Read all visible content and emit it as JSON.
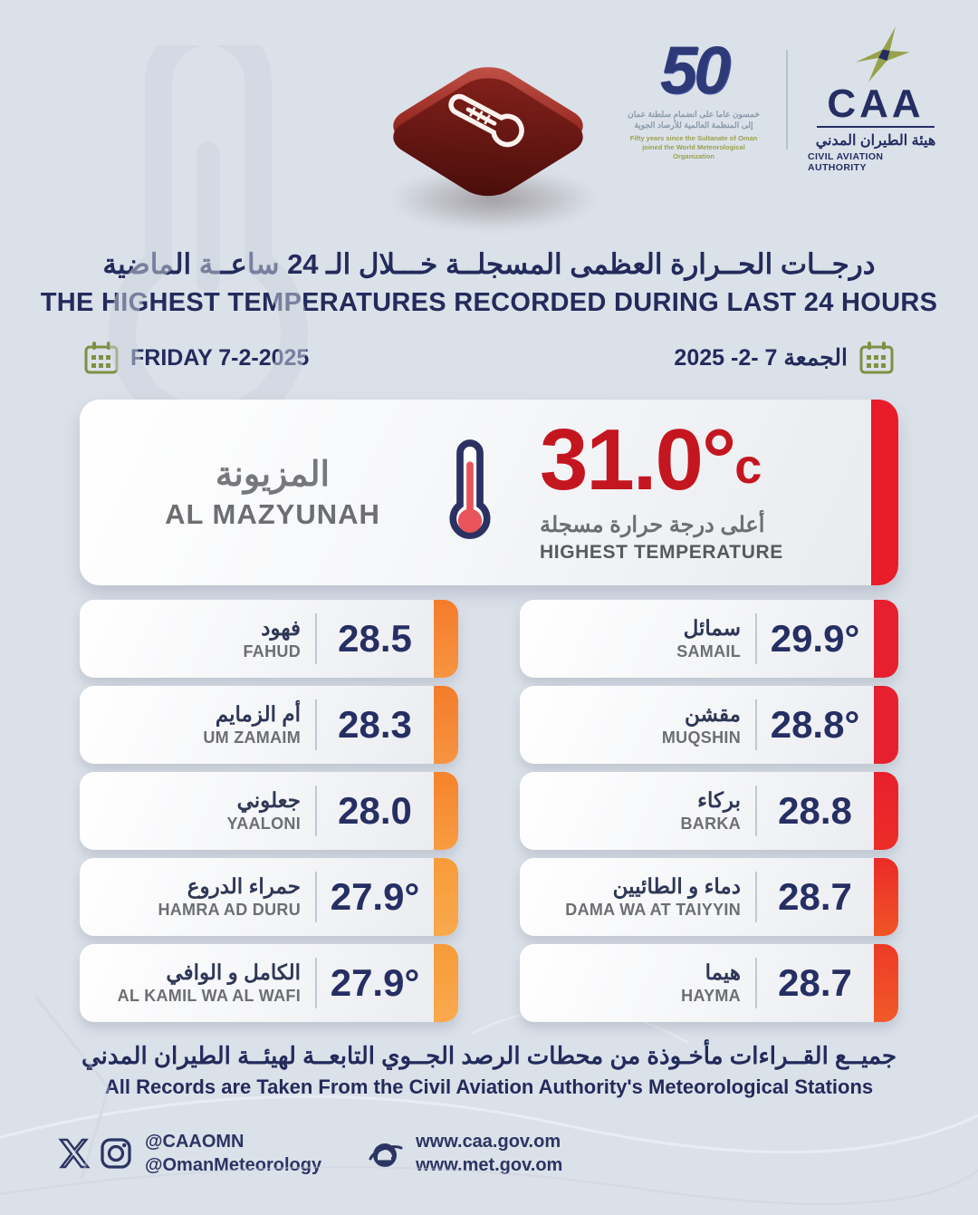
{
  "colors": {
    "background": "#dbe1e9",
    "navy": "#232b5c",
    "red": "#c4161f",
    "strip_red": "#e81c2a",
    "orange": "#f58231",
    "gray": "#6d6e71",
    "olive": "#7e9043"
  },
  "header": {
    "anniversary": {
      "number": "50",
      "tagline_ar": [
        "خمسون عاما على انضمام سلطنة عمان",
        "إلى المنظمة العالمية للأرصاد الجوية"
      ],
      "tagline_en": [
        "Fifty years since the Sultanate of Oman",
        "joined the World Meteorological Organization"
      ]
    },
    "caa": {
      "acronym": "CAA",
      "name_ar": "هيئة الطيران المدني",
      "name_en": "CIVIL AVIATION AUTHORITY"
    }
  },
  "title": {
    "ar": "درجــات الحــرارة العظمى المسجلــة خـــلال الـ 24 ساعــة الماضية",
    "en": "THE HIGHEST TEMPERATURES RECORDED DURING LAST 24 HOURS"
  },
  "date": {
    "en": "FRIDAY 7-2-2025",
    "ar": "الجمعة 7 -2- 2025"
  },
  "highlight": {
    "name_ar": "المزيونة",
    "name_en": "AL MAZYUNAH",
    "temp": "31.0",
    "degree": "°",
    "unit": "c",
    "label_ar": "أعلى درجة حرارة مسجلة",
    "label_en": "HIGHEST TEMPERATURE",
    "accent": "#e81c2a"
  },
  "columns": {
    "left": [
      {
        "name_ar": "فهود",
        "name_en": "FAHUD",
        "temp": "28.5",
        "accent": "#f47c2b",
        "accent2": "#f79440"
      },
      {
        "name_ar": "أم الزمايم",
        "name_en": "UM ZAMAIM",
        "temp": "28.3",
        "accent": "#f47c2b",
        "accent2": "#f79440"
      },
      {
        "name_ar": "جعلوني",
        "name_en": "YAALONI",
        "temp": "28.0",
        "accent": "#f5832c",
        "accent2": "#f89c42"
      },
      {
        "name_ar": "حمراء الدروع",
        "name_en": "HAMRA AD DURU",
        "temp": "27.9°",
        "accent": "#f79b39",
        "accent2": "#f9a94d"
      },
      {
        "name_ar": "الكامل و الوافي",
        "name_en": "AL KAMIL WA AL WAFI",
        "temp": "27.9°",
        "accent": "#f79b39",
        "accent2": "#f9a94d"
      }
    ],
    "right": [
      {
        "name_ar": "سمائل",
        "name_en": "SAMAIL",
        "temp": "29.9°",
        "accent": "#e6202e",
        "accent2": "#e6202e"
      },
      {
        "name_ar": "مقشن",
        "name_en": "MUQSHIN",
        "temp": "28.8°",
        "accent": "#e6202e",
        "accent2": "#e6202e"
      },
      {
        "name_ar": "بركاء",
        "name_en": "BARKA",
        "temp": "28.8",
        "accent": "#e8202c",
        "accent2": "#ec2d28"
      },
      {
        "name_ar": "دماء و الطائيين",
        "name_en": "DAMA WA AT TAIYYIN",
        "temp": "28.7",
        "accent": "#ea2b28",
        "accent2": "#f05525"
      },
      {
        "name_ar": "هيما",
        "name_en": "HAYMA",
        "temp": "28.7",
        "accent": "#ec3b26",
        "accent2": "#f05a28"
      }
    ]
  },
  "footnote": {
    "ar": "جميــع القــراءات مأخـوذة من محطات الرصد الجــوي التابعــة لهيئــة الطيران المدني",
    "en": "All Records are Taken From the Civil Aviation Authority's Meteorological Stations"
  },
  "social": {
    "handles": [
      "@CAAOMN",
      "@OmanMeteorology"
    ],
    "websites": [
      "www.caa.gov.om",
      "www.met.gov.om"
    ]
  },
  "chart_data": {
    "type": "table",
    "title": "THE HIGHEST TEMPERATURES RECORDED DURING LAST 24 HOURS",
    "date": "FRIDAY 7-2-2025",
    "unit": "°C",
    "highest": {
      "station": "AL MAZYUNAH",
      "value": 31.0
    },
    "categories": [
      "SAMAIL",
      "MUQSHIN",
      "BARKA",
      "DAMA WA AT TAIYYIN",
      "HAYMA",
      "FAHUD",
      "UM ZAMAIM",
      "YAALONI",
      "HAMRA AD DURU",
      "AL KAMIL WA AL WAFI"
    ],
    "values": [
      29.9,
      28.8,
      28.8,
      28.7,
      28.7,
      28.5,
      28.3,
      28.0,
      27.9,
      27.9
    ]
  }
}
